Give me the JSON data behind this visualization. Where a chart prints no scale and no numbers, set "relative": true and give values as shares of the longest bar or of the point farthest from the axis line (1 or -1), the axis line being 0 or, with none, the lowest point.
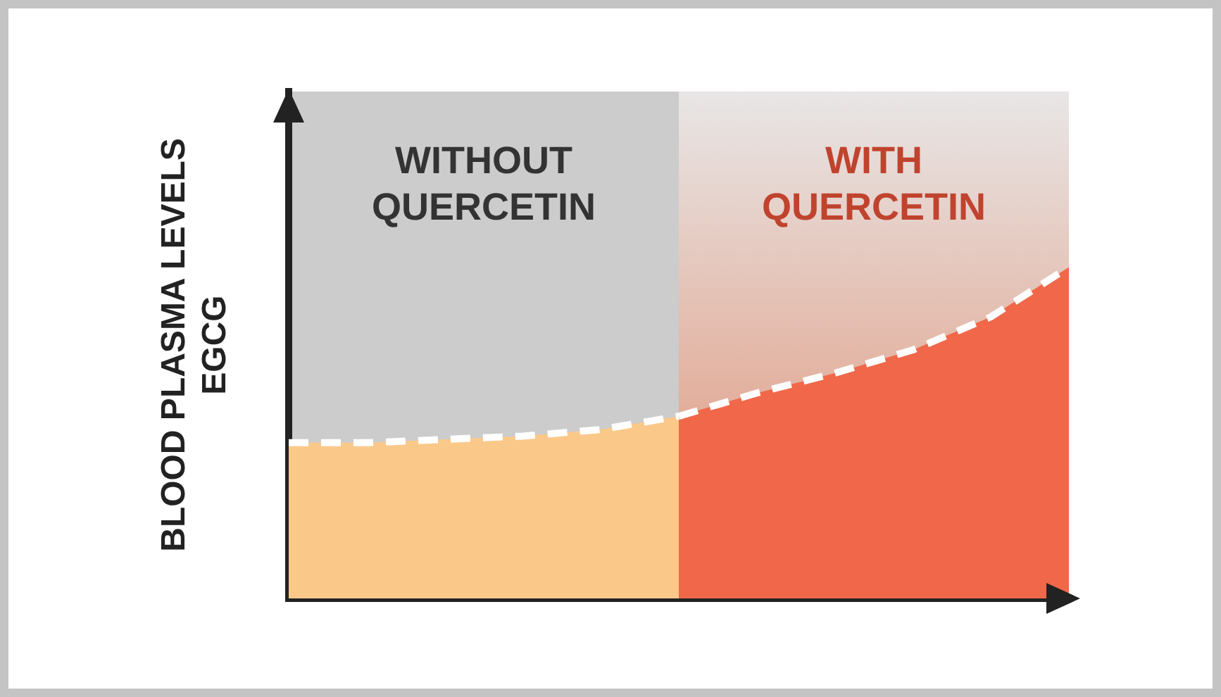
{
  "chart_data": {
    "type": "area",
    "relative": true,
    "ylabel": "BLOOD PLASMA LEVELS\nEGCG",
    "categories": [
      null,
      null,
      null,
      null,
      null,
      null,
      null,
      null,
      null,
      null,
      null
    ],
    "grid": false,
    "legend": false,
    "line_style": "dashed",
    "annotations": [
      "WITHOUT\nQUERCETIN",
      "WITH\nQUERCETIN"
    ],
    "series": [
      {
        "color": "#fac98a",
        "values": [
          0.47,
          0.47,
          0.48,
          0.49,
          0.51,
          0.55,
          null,
          null,
          null,
          null,
          null
        ]
      },
      {
        "color": "#f06849",
        "values": [
          null,
          null,
          null,
          null,
          null,
          0.55,
          0.62,
          0.68,
          0.75,
          0.85,
          1
        ]
      }
    ]
  }
}
